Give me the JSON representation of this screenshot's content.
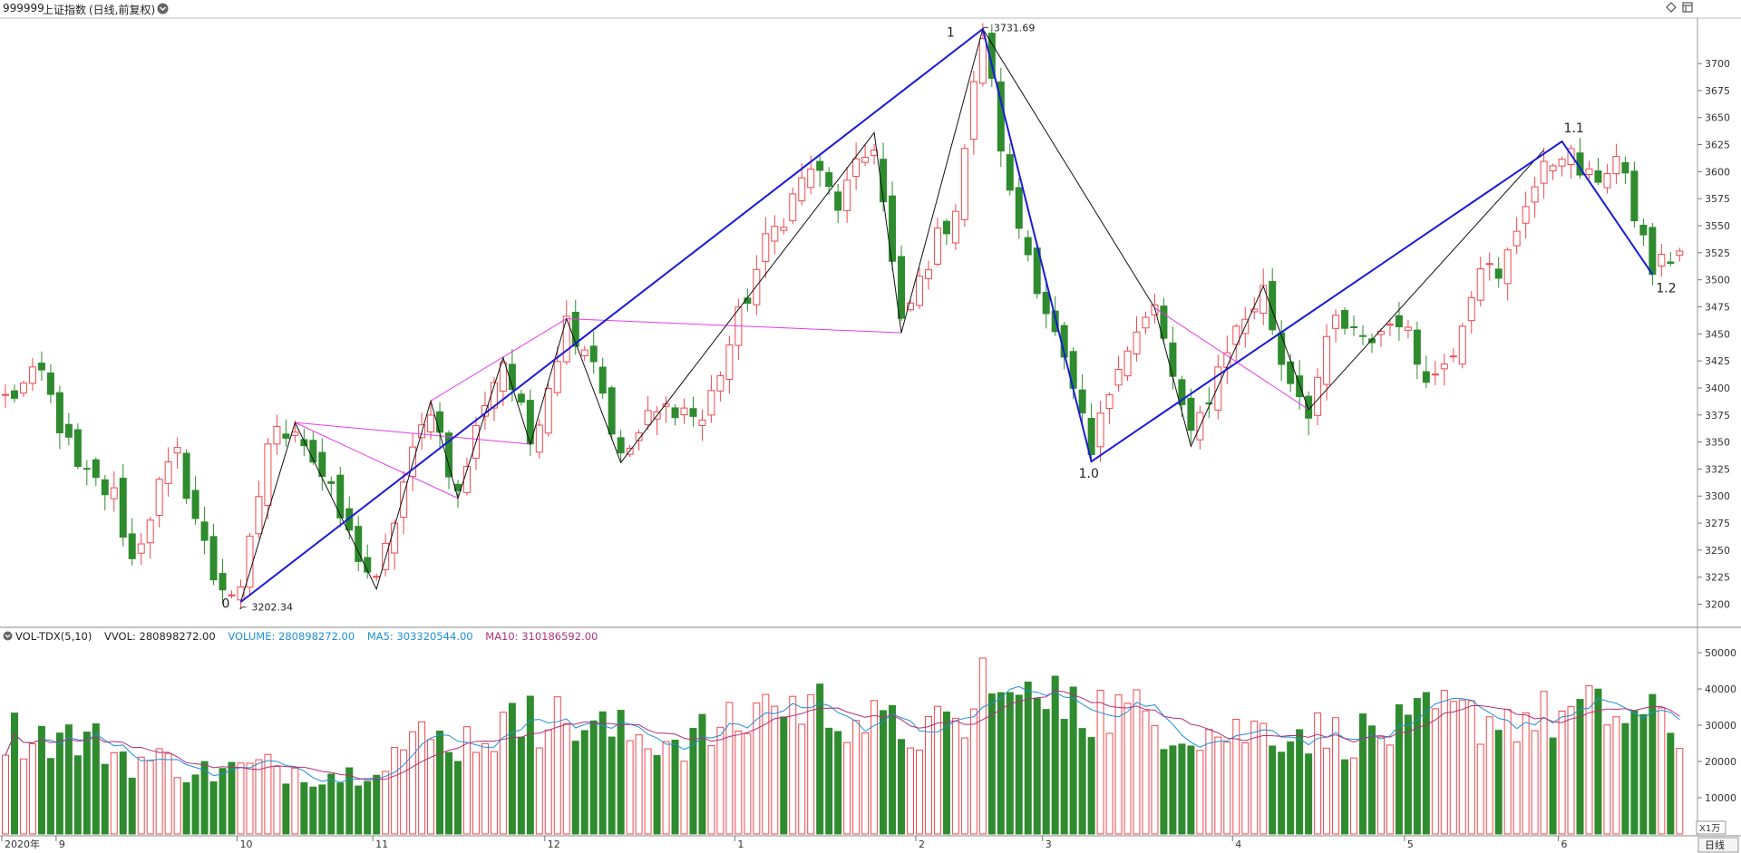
{
  "header": {
    "symbol": "999999",
    "name": "上证指数",
    "period": "(日线,前复权)",
    "menu_icon": "circle-chevron-down-icon",
    "diamond_icon": "diamond-icon",
    "window_icon": "window-icon"
  },
  "colors": {
    "up": "#f0484f",
    "down": "#2e8b2e",
    "wave_main": "#1a1adc",
    "wave_sub": "#111111",
    "wave_alt": "#e83ce8",
    "volume_line": "#1f8fd8",
    "ma5": "#1f8fd8",
    "ma10": "#b0307a"
  },
  "volume_header": {
    "indicator": "VOL-TDX(5,10)",
    "vvol": "VVOL: 280898272.00",
    "volume": "VOLUME: 280898272.00",
    "ma5": "MA5: 303320544.00",
    "ma10": "MA10: 310186592.00"
  },
  "chart_data": [
    {
      "type": "candlestick",
      "ylim": [
        3182,
        3742
      ],
      "y_ticks": [
        3200,
        3225,
        3250,
        3275,
        3300,
        3325,
        3350,
        3375,
        3400,
        3425,
        3450,
        3475,
        3500,
        3525,
        3550,
        3575,
        3600,
        3625,
        3650,
        3675,
        3700
      ],
      "x_tick_labels": [
        {
          "label": "2020年",
          "bar": 0
        },
        {
          "label": "9",
          "bar": 6
        },
        {
          "label": "10",
          "bar": 26
        },
        {
          "label": "11",
          "bar": 41
        },
        {
          "label": "12",
          "bar": 60
        },
        {
          "label": "1",
          "bar": 81
        },
        {
          "label": "2",
          "bar": 101
        },
        {
          "label": "3",
          "bar": 115
        },
        {
          "label": "4",
          "bar": 136
        },
        {
          "label": "5",
          "bar": 155
        },
        {
          "label": "6",
          "bar": 172
        }
      ],
      "wave_labels": [
        {
          "label": "0",
          "bar": 26,
          "price": 3202.34,
          "pos": "below"
        },
        {
          "label": "1",
          "bar": 108,
          "price": 3731.69,
          "pos": "above"
        },
        {
          "label": "1.0",
          "bar": 120,
          "price": 3332,
          "pos": "below"
        },
        {
          "label": "1.1",
          "bar": 172,
          "price": 3628,
          "pos": "above"
        },
        {
          "label": "1.2",
          "bar": 182,
          "price": 3505,
          "pos": "below-right"
        }
      ],
      "annotations": [
        {
          "text": "3731.69",
          "bar": 108,
          "price": 3731.69
        },
        {
          "text": "3202.34",
          "bar": 26,
          "price": 3202.34
        }
      ],
      "waves": {
        "main": [
          [
            26,
            3202
          ],
          [
            108,
            3732
          ],
          [
            120,
            3332
          ],
          [
            172,
            3628
          ],
          [
            182,
            3505
          ]
        ],
        "sub": [
          [
            26,
            3202
          ],
          [
            32,
            3368
          ],
          [
            41,
            3214
          ],
          [
            47,
            3388
          ],
          [
            50,
            3298
          ],
          [
            55,
            3428
          ],
          [
            58,
            3348
          ],
          [
            62,
            3464
          ],
          [
            68,
            3331
          ],
          [
            96,
            3636
          ],
          [
            99,
            3451
          ],
          [
            108,
            3732
          ],
          [
            127,
            3474
          ],
          [
            131,
            3346
          ],
          [
            139,
            3494
          ],
          [
            144,
            3380
          ],
          [
            170,
            3620
          ]
        ],
        "alt": [
          [
            32,
            3368
          ],
          [
            58,
            3348
          ],
          [
            32,
            3368
          ],
          [
            50,
            3298
          ],
          [
            62,
            3464
          ],
          [
            99,
            3451
          ],
          [
            127,
            3474
          ],
          [
            144,
            3380
          ],
          [
            47,
            3388
          ],
          [
            62,
            3464
          ]
        ]
      },
      "waypoints": [
        [
          0,
          3390
        ],
        [
          4,
          3412
        ],
        [
          8,
          3322
        ],
        [
          12,
          3300
        ],
        [
          14,
          3240
        ],
        [
          17,
          3308
        ],
        [
          19,
          3336
        ],
        [
          21,
          3280
        ],
        [
          23,
          3226
        ],
        [
          26,
          3205
        ],
        [
          29,
          3350
        ],
        [
          32,
          3368
        ],
        [
          35,
          3318
        ],
        [
          38,
          3262
        ],
        [
          41,
          3216
        ],
        [
          44,
          3312
        ],
        [
          47,
          3385
        ],
        [
          50,
          3300
        ],
        [
          53,
          3390
        ],
        [
          55,
          3426
        ],
        [
          58,
          3350
        ],
        [
          62,
          3462
        ],
        [
          65,
          3430
        ],
        [
          68,
          3332
        ],
        [
          71,
          3370
        ],
        [
          74,
          3385
        ],
        [
          77,
          3370
        ],
        [
          80,
          3440
        ],
        [
          84,
          3532
        ],
        [
          89,
          3605
        ],
        [
          92,
          3570
        ],
        [
          96,
          3628
        ],
        [
          99,
          3455
        ],
        [
          102,
          3520
        ],
        [
          105,
          3570
        ],
        [
          108,
          3728
        ],
        [
          111,
          3575
        ],
        [
          114,
          3500
        ],
        [
          117,
          3420
        ],
        [
          120,
          3336
        ],
        [
          123,
          3430
        ],
        [
          127,
          3472
        ],
        [
          131,
          3350
        ],
        [
          135,
          3440
        ],
        [
          139,
          3490
        ],
        [
          141,
          3425
        ],
        [
          144,
          3382
        ],
        [
          147,
          3462
        ],
        [
          150,
          3440
        ],
        [
          154,
          3466
        ],
        [
          156,
          3426
        ],
        [
          158,
          3410
        ],
        [
          160,
          3440
        ],
        [
          163,
          3520
        ],
        [
          165,
          3496
        ],
        [
          168,
          3575
        ],
        [
          172,
          3622
        ],
        [
          175,
          3590
        ],
        [
          178,
          3612
        ],
        [
          182,
          3510
        ],
        [
          185,
          3526
        ]
      ],
      "bar_count": 186
    },
    {
      "type": "bar",
      "title": "VOL-TDX(5,10)",
      "ylim": [
        0,
        52000
      ],
      "y_ticks": [
        10000,
        20000,
        30000,
        40000,
        50000
      ],
      "unit_label": "X1万",
      "series": [
        {
          "name": "VOLUME",
          "values_ref": "derived-per-bar"
        },
        {
          "name": "MA5"
        },
        {
          "name": "MA10"
        }
      ],
      "vol_waypoints": [
        [
          0,
          29000
        ],
        [
          6,
          27500
        ],
        [
          10,
          26000
        ],
        [
          14,
          21000
        ],
        [
          18,
          20500
        ],
        [
          22,
          17500
        ],
        [
          26,
          18500
        ],
        [
          30,
          19000
        ],
        [
          35,
          17500
        ],
        [
          38,
          16800
        ],
        [
          41,
          21500
        ],
        [
          46,
          27000
        ],
        [
          50,
          26500
        ],
        [
          55,
          30000
        ],
        [
          60,
          33000
        ],
        [
          65,
          30000
        ],
        [
          70,
          27500
        ],
        [
          75,
          27000
        ],
        [
          80,
          30000
        ],
        [
          84,
          34000
        ],
        [
          88,
          37000
        ],
        [
          92,
          35000
        ],
        [
          96,
          31000
        ],
        [
          100,
          29000
        ],
        [
          104,
          29500
        ],
        [
          108,
          34000
        ],
        [
          111,
          38000
        ],
        [
          114,
          37000
        ],
        [
          118,
          36500
        ],
        [
          122,
          35500
        ],
        [
          127,
          32500
        ],
        [
          131,
          30000
        ],
        [
          135,
          28500
        ],
        [
          139,
          30000
        ],
        [
          143,
          29500
        ],
        [
          147,
          28000
        ],
        [
          151,
          28500
        ],
        [
          155,
          29500
        ],
        [
          158,
          34000
        ],
        [
          162,
          33000
        ],
        [
          166,
          33500
        ],
        [
          170,
          33000
        ],
        [
          174,
          34500
        ],
        [
          178,
          34000
        ],
        [
          182,
          32000
        ],
        [
          185,
          29000
        ]
      ],
      "vol_spikes": [
        [
          108,
          48500
        ],
        [
          111,
          39000
        ],
        [
          118,
          40500
        ],
        [
          84,
          38500
        ],
        [
          58,
          38000
        ]
      ]
    }
  ],
  "footer": {
    "period_button": "日线",
    "unit_label": "X1万"
  }
}
